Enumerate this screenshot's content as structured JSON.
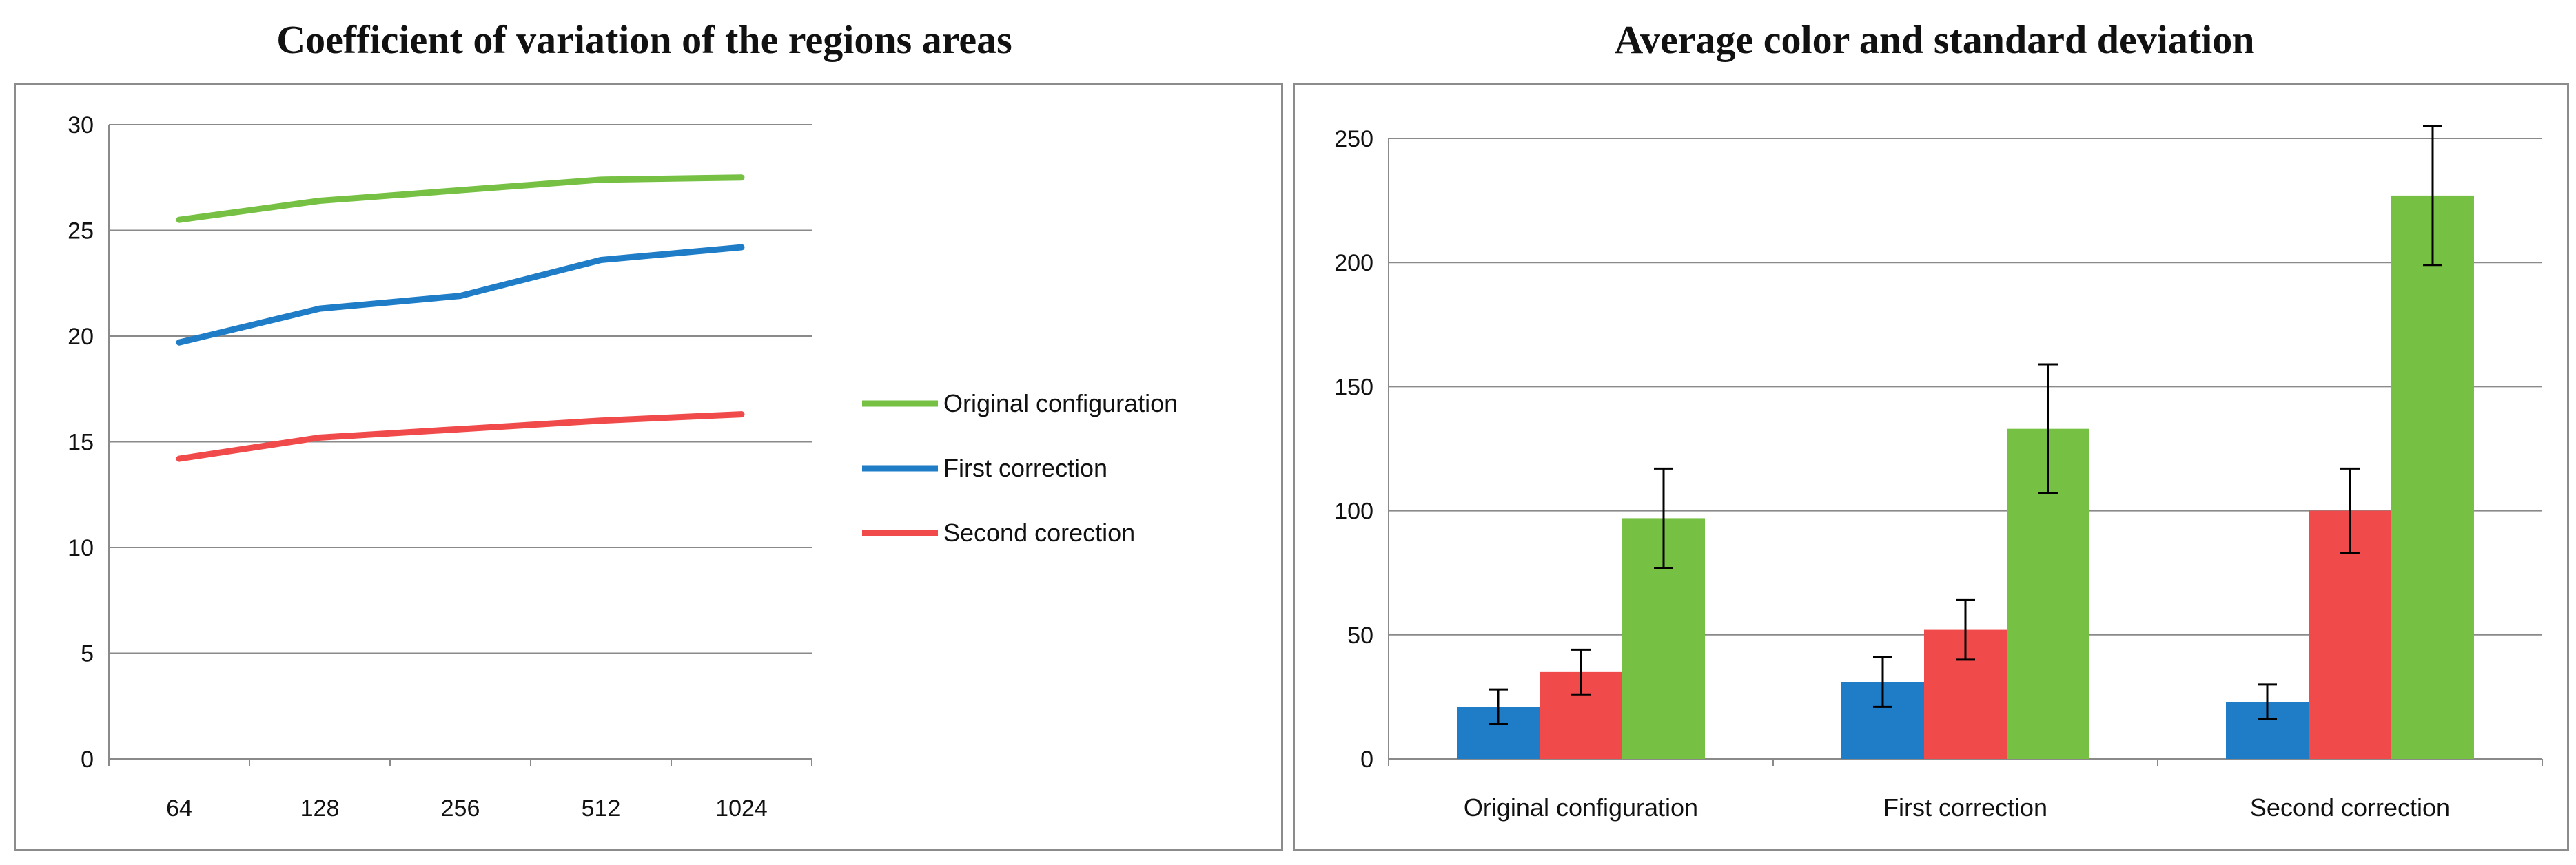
{
  "chart_data": [
    {
      "type": "line",
      "title": "Coefficient of variation of the regions areas",
      "xlabel": "",
      "ylabel": "",
      "categories": [
        "64",
        "128",
        "256",
        "512",
        "1024"
      ],
      "ylim": [
        0,
        30
      ],
      "yticks": [
        0,
        5,
        10,
        15,
        20,
        25,
        30
      ],
      "grid": true,
      "legend": "right",
      "series": [
        {
          "name": "Original configuration",
          "color": "#76c043",
          "values": [
            25.5,
            26.4,
            26.9,
            27.4,
            27.5
          ]
        },
        {
          "name": "First correction",
          "color": "#1f7dc8",
          "values": [
            19.7,
            21.3,
            21.9,
            23.6,
            24.2
          ]
        },
        {
          "name": "Second corection",
          "color": "#f04a4a",
          "values": [
            14.2,
            15.2,
            15.6,
            16.0,
            16.3
          ]
        }
      ]
    },
    {
      "type": "bar",
      "title": "Average color and standard deviation",
      "xlabel": "",
      "ylabel": "",
      "categories": [
        "Original configuration",
        "First correction",
        "Second correction"
      ],
      "ylim": [
        0,
        250
      ],
      "yticks": [
        0,
        50,
        100,
        150,
        200,
        250
      ],
      "grid": true,
      "legend": "none",
      "series": [
        {
          "color": "#1f7dc8",
          "values": [
            21,
            31,
            23
          ],
          "errors": [
            7,
            10,
            7
          ]
        },
        {
          "color": "#f04a4a",
          "values": [
            35,
            52,
            100
          ],
          "errors": [
            9,
            12,
            17
          ]
        },
        {
          "color": "#76c043",
          "values": [
            97,
            133,
            227
          ],
          "errors": [
            20,
            26,
            28
          ]
        }
      ]
    }
  ]
}
